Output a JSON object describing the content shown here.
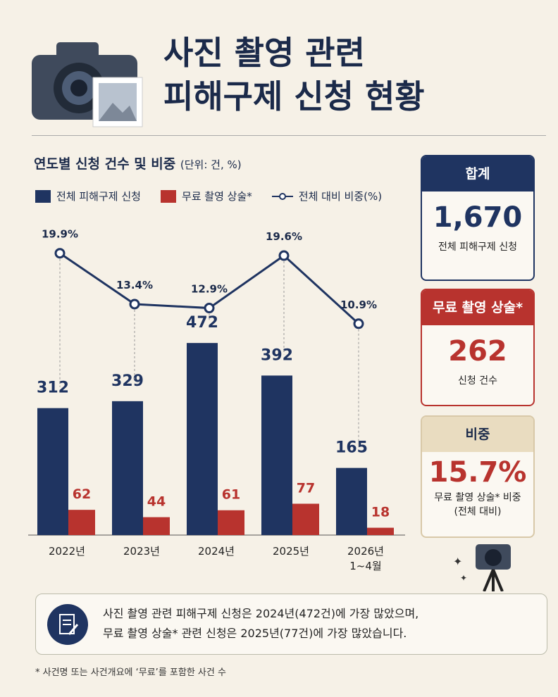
{
  "header": {
    "title_lines": [
      "사진 촬영 관련",
      "피해구제 신청 현황"
    ]
  },
  "chart_data": {
    "type": "bar",
    "title": "연도별 신청 건수 및 비중",
    "unit_note": "(단위: 건, %)",
    "categories": [
      "2022년",
      "2023년",
      "2024년",
      "2025년",
      "2026년\n1~4월"
    ],
    "series": [
      {
        "name": "전체 피해구제 신청",
        "color": "#1f3461",
        "values": [
          312,
          329,
          472,
          392,
          165
        ]
      },
      {
        "name": "무료 촬영 상술*",
        "color": "#b8332e",
        "values": [
          62,
          44,
          61,
          77,
          18
        ]
      },
      {
        "name": "전체 대비 비중(%)",
        "color": "#1f3461",
        "type": "line",
        "axis": "y2",
        "values": [
          19.9,
          13.4,
          12.9,
          19.6,
          10.9
        ],
        "value_labels": [
          "19.9%",
          "13.4%",
          "12.9%",
          "19.6%",
          "10.9%"
        ]
      }
    ],
    "ylim": [
      0,
      500
    ],
    "y2lim": [
      0,
      25
    ]
  },
  "cards": [
    {
      "heading": "합계",
      "value": "1,670",
      "caption": "전체 피해구제 신청"
    },
    {
      "heading": "무료 촬영 상술*",
      "value": "262",
      "caption": "신청 건수"
    },
    {
      "heading": "비중",
      "value": "15.7%",
      "caption": "무료 촬영 상술* 비중\n(전체 대비)"
    }
  ],
  "note": {
    "lines": [
      "사진 촬영 관련 피해구제 신청은 2024년(472건)에 가장 많았으며,",
      "무료 촬영 상술* 관련 신청은 2025년(77건)에 가장 많았습니다."
    ]
  },
  "footnote": "* 사건명 또는 사건개요에 ‘무료’를 포함한 사건 수"
}
